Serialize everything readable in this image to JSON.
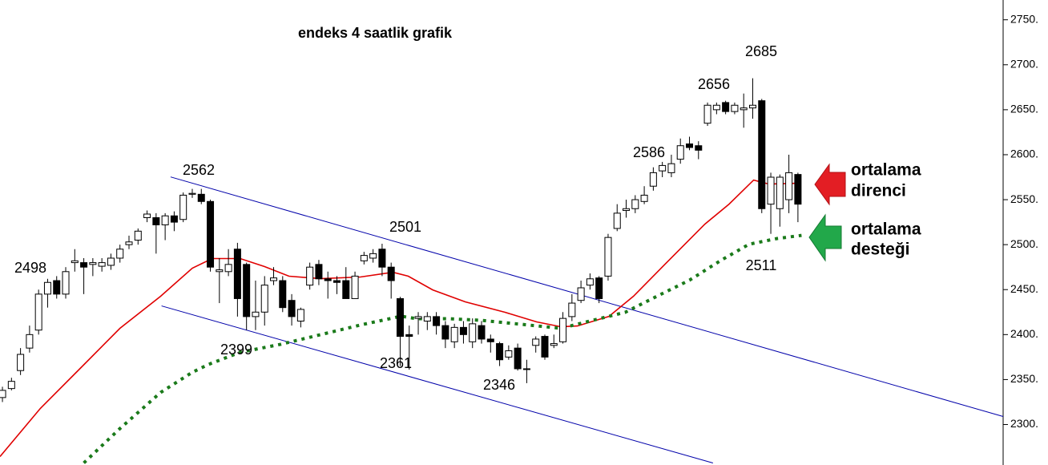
{
  "chart_data": {
    "type": "candlestick",
    "title": "endeks 4 saatlik grafik",
    "xlim": [
      -0.27,
      110.7
    ],
    "ylim": [
      2255,
      2772
    ],
    "yticks": [
      {
        "value": 2300,
        "label": "2300."
      },
      {
        "value": 2350,
        "label": "2350."
      },
      {
        "value": 2400,
        "label": "2400."
      },
      {
        "value": 2450,
        "label": "2450."
      },
      {
        "value": 2500,
        "label": "2500."
      },
      {
        "value": 2550,
        "label": "2550."
      },
      {
        "value": 2600,
        "label": "2600."
      },
      {
        "value": 2650,
        "label": "2650."
      },
      {
        "value": 2700,
        "label": "2700."
      },
      {
        "value": 2750,
        "label": "2750."
      }
    ],
    "up_color": "#ffffff",
    "down_color": "#000000",
    "x": [
      0,
      1,
      2,
      3,
      4,
      5,
      6,
      7,
      8,
      9,
      10,
      11,
      12,
      13,
      14,
      15,
      16,
      17,
      18,
      19,
      20,
      21,
      22,
      23,
      24,
      25,
      26,
      27,
      28,
      29,
      30,
      31,
      32,
      33,
      34,
      35,
      36,
      37,
      38,
      39,
      40,
      41,
      42,
      43,
      44,
      45,
      46,
      47,
      48,
      49,
      50,
      51,
      52,
      53,
      54,
      55,
      56,
      57,
      58,
      59,
      60,
      61,
      62,
      63,
      64,
      65,
      66,
      67,
      68,
      69,
      70,
      71,
      72,
      73,
      74,
      75,
      76,
      77,
      78,
      79,
      80,
      81,
      82,
      83,
      84,
      85,
      86,
      87,
      88
    ],
    "open": [
      2330,
      2340,
      2360,
      2385,
      2405,
      2445,
      2460,
      2445,
      2480,
      2480,
      2478,
      2476,
      2477,
      2485,
      2500,
      2505,
      2530,
      2530,
      2522,
      2532,
      2528,
      2556,
      2556,
      2548,
      2470,
      2470,
      2495,
      2478,
      2420,
      2425,
      2460,
      2460,
      2438,
      2415,
      2455,
      2478,
      2462,
      2460,
      2460,
      2440,
      2482,
      2485,
      2495,
      2475,
      2440,
      2400,
      2418,
      2415,
      2420,
      2410,
      2392,
      2408,
      2392,
      2410,
      2395,
      2390,
      2375,
      2385,
      2362,
      2388,
      2398,
      2388,
      2392,
      2420,
      2438,
      2455,
      2463,
      2465,
      2518,
      2538,
      2540,
      2548,
      2565,
      2582,
      2580,
      2595,
      2612,
      2610,
      2635,
      2650,
      2658,
      2648,
      2650,
      2652,
      2660,
      2545,
      2540,
      2550,
      2578
    ],
    "high": [
      2342,
      2352,
      2385,
      2410,
      2450,
      2462,
      2465,
      2475,
      2495,
      2485,
      2485,
      2485,
      2490,
      2500,
      2510,
      2518,
      2538,
      2535,
      2535,
      2537,
      2558,
      2562,
      2562,
      2550,
      2485,
      2495,
      2502,
      2480,
      2460,
      2465,
      2475,
      2465,
      2445,
      2430,
      2480,
      2483,
      2470,
      2465,
      2475,
      2470,
      2492,
      2495,
      2501,
      2480,
      2442,
      2410,
      2425,
      2425,
      2425,
      2415,
      2412,
      2415,
      2418,
      2415,
      2400,
      2392,
      2388,
      2390,
      2372,
      2398,
      2400,
      2400,
      2425,
      2445,
      2460,
      2468,
      2465,
      2512,
      2545,
      2550,
      2555,
      2565,
      2586,
      2592,
      2600,
      2618,
      2620,
      2615,
      2658,
      2658,
      2660,
      2658,
      2668,
      2685,
      2662,
      2580,
      2578,
      2600,
      2580
    ],
    "low": [
      2325,
      2338,
      2355,
      2380,
      2400,
      2430,
      2440,
      2440,
      2470,
      2445,
      2465,
      2470,
      2472,
      2480,
      2495,
      2500,
      2525,
      2490,
      2505,
      2515,
      2525,
      2552,
      2545,
      2470,
      2435,
      2465,
      2420,
      2405,
      2405,
      2410,
      2455,
      2425,
      2410,
      2408,
      2450,
      2455,
      2440,
      2445,
      2440,
      2440,
      2478,
      2480,
      2465,
      2440,
      2365,
      2361,
      2400,
      2405,
      2400,
      2385,
      2385,
      2390,
      2385,
      2390,
      2380,
      2365,
      2372,
      2360,
      2346,
      2380,
      2372,
      2385,
      2390,
      2415,
      2435,
      2450,
      2435,
      2460,
      2515,
      2530,
      2535,
      2545,
      2560,
      2575,
      2575,
      2590,
      2605,
      2595,
      2632,
      2645,
      2645,
      2645,
      2630,
      2640,
      2535,
      2512,
      2520,
      2535,
      2525
    ],
    "close": [
      2338,
      2348,
      2378,
      2400,
      2445,
      2458,
      2445,
      2470,
      2482,
      2475,
      2480,
      2480,
      2485,
      2495,
      2503,
      2515,
      2534,
      2522,
      2532,
      2525,
      2555,
      2557,
      2548,
      2475,
      2472,
      2478,
      2440,
      2420,
      2425,
      2455,
      2463,
      2430,
      2420,
      2428,
      2475,
      2462,
      2460,
      2458,
      2440,
      2465,
      2488,
      2490,
      2475,
      2460,
      2398,
      2398,
      2420,
      2420,
      2410,
      2395,
      2408,
      2400,
      2412,
      2395,
      2392,
      2372,
      2382,
      2362,
      2362,
      2395,
      2375,
      2390,
      2418,
      2435,
      2452,
      2462,
      2440,
      2508,
      2535,
      2540,
      2550,
      2555,
      2580,
      2588,
      2590,
      2610,
      2608,
      2605,
      2655,
      2655,
      2648,
      2655,
      2652,
      2655,
      2540,
      2575,
      2575,
      2580,
      2545
    ],
    "lines": [
      {
        "color": "#e00000",
        "style": "solid",
        "x": [
          -0.27,
          4.2,
          8.6,
          13.0,
          17.5,
          21.0,
          23.2,
          26.3,
          29.0,
          31.7,
          35.2,
          39.6,
          43.2,
          44.9,
          47.6,
          51.2,
          55.6,
          59.1,
          61.8,
          63.6,
          67.1,
          69.8,
          73.3,
          77.7,
          80.4,
          83.1,
          84.8,
          88.0
        ],
        "values": [
          2264.4,
          2317.9,
          2362.4,
          2407.0,
          2442.6,
          2473.8,
          2484.5,
          2484.5,
          2475.6,
          2464.9,
          2462.2,
          2464.0,
          2469.3,
          2464.9,
          2449.7,
          2436.4,
          2424.8,
          2414.1,
          2408.7,
          2409.6,
          2420.3,
          2442.6,
          2478.2,
          2522.8,
          2545.1,
          2571.8,
          2567.3,
          2568.2
        ]
      },
      {
        "color": "#1a7a1a",
        "style": "dotted",
        "x": [
          9.0,
          13.0,
          17.5,
          21.0,
          22.8,
          26.3,
          30.8,
          35.2,
          39.6,
          44.1,
          45.8,
          49.4,
          52.9,
          57.4,
          61.8,
          65.3,
          68.9,
          72.4,
          76.0,
          79.5,
          82.6,
          85.7,
          88.4
        ],
        "values": [
          2257.3,
          2295.6,
          2335.7,
          2358.0,
          2366.9,
          2380.3,
          2389.2,
          2399.9,
          2410.6,
          2420.4,
          2417.7,
          2417.7,
          2415.9,
          2411.4,
          2407.0,
          2415.9,
          2424.8,
          2442.6,
          2460.5,
          2482.7,
          2500.5,
          2506.8,
          2510.3
        ]
      }
    ],
    "trendlines": [
      {
        "color": "#0000aa",
        "x": [
          18.6,
          110.7
        ],
        "values": [
          2575.3,
          2308.9
        ]
      },
      {
        "color": "#0000aa",
        "x": [
          17.6,
          78.6
        ],
        "values": [
          2431.9,
          2257.2
        ]
      }
    ],
    "point_labels": [
      2498,
      2562,
      2399,
      2501,
      2361,
      2346,
      2586,
      2656,
      2685,
      2511
    ],
    "annotations": {
      "resistance": [
        "ortalama",
        "direnci"
      ],
      "support": [
        "ortalama",
        "desteği"
      ]
    }
  }
}
